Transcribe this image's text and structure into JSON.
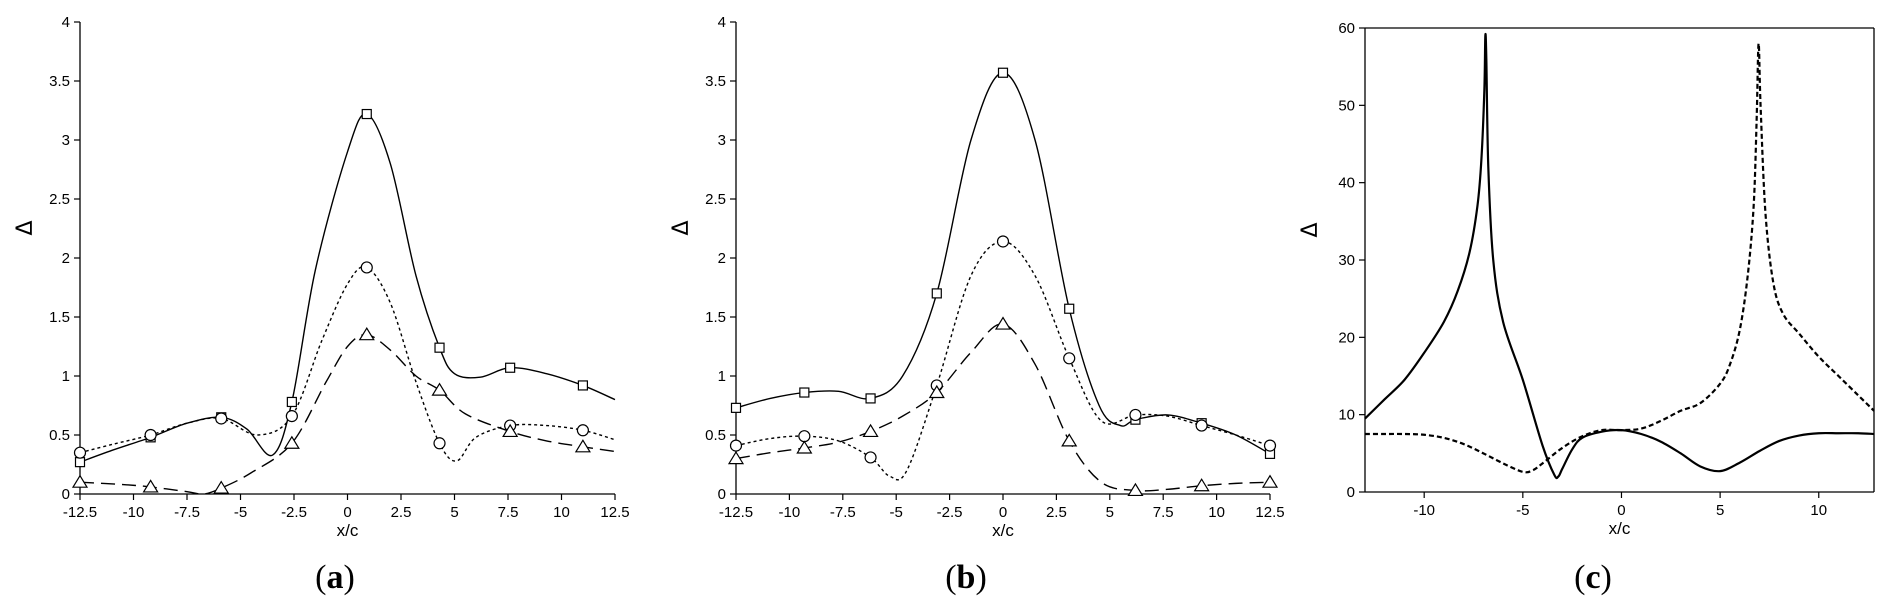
{
  "chart_data": [
    {
      "type": "line",
      "panel": "a",
      "xlabel": "x/c",
      "ylabel": "Δ",
      "xlim": [
        -12.5,
        12.5
      ],
      "ylim": [
        0,
        4
      ],
      "xticks": [
        "-12.5",
        "-10",
        "-7.5",
        "-5",
        "-2.5",
        "0",
        "2.5",
        "5",
        "7.5",
        "10",
        "12.5"
      ],
      "yticks": [
        "0",
        "0.5",
        "1",
        "1.5",
        "2",
        "2.5",
        "3",
        "3.5",
        "4"
      ],
      "series": [
        {
          "marker": "square",
          "dash": "solid",
          "x": [
            -12.5,
            -9.2,
            -5.9,
            -2.6,
            0.9,
            4.3,
            7.6,
            11.0
          ],
          "y": [
            0.27,
            0.48,
            0.65,
            0.78,
            3.22,
            1.24,
            1.07,
            0.92
          ],
          "curve_x": [
            -12.5,
            -11.0,
            -9.2,
            -7.5,
            -5.9,
            -4.7,
            -3.5,
            -2.6,
            -1.5,
            0,
            0.9,
            2,
            3.2,
            4.3,
            5,
            6.2,
            7.6,
            9.3,
            11.0,
            12.5
          ],
          "curve_y": [
            0.27,
            0.37,
            0.48,
            0.6,
            0.65,
            0.55,
            0.33,
            0.78,
            1.9,
            2.9,
            3.22,
            2.8,
            1.85,
            1.24,
            1.02,
            0.99,
            1.07,
            1.02,
            0.92,
            0.8
          ]
        },
        {
          "marker": "circle",
          "dash": "dotted",
          "x": [
            -12.5,
            -9.2,
            -5.9,
            -2.6,
            0.9,
            4.3,
            7.6,
            11.0
          ],
          "y": [
            0.35,
            0.5,
            0.64,
            0.66,
            1.92,
            0.43,
            0.58,
            0.54
          ],
          "curve_x": [
            -12.5,
            -11.0,
            -9.2,
            -7.5,
            -5.9,
            -4.2,
            -2.6,
            -1.2,
            0,
            0.9,
            2,
            3.2,
            4.3,
            5.1,
            6,
            7.6,
            9.3,
            11.0,
            12.5
          ],
          "curve_y": [
            0.35,
            0.42,
            0.5,
            0.6,
            0.64,
            0.5,
            0.66,
            1.3,
            1.78,
            1.92,
            1.62,
            0.95,
            0.43,
            0.28,
            0.48,
            0.58,
            0.58,
            0.54,
            0.46
          ]
        },
        {
          "marker": "triangle",
          "dash": "dashed",
          "x": [
            -12.5,
            -9.2,
            -5.9,
            -2.6,
            0.9,
            4.3,
            7.6,
            11.0
          ],
          "y": [
            0.1,
            0.06,
            0.05,
            0.43,
            1.35,
            0.88,
            0.53,
            0.4
          ],
          "curve_x": [
            -12.5,
            -10.5,
            -9.2,
            -7.5,
            -6.7,
            -5.9,
            -4.5,
            -2.6,
            -1.0,
            0,
            0.9,
            2,
            3.2,
            4.3,
            5.5,
            7.6,
            9.3,
            11.0,
            12.5
          ],
          "curve_y": [
            0.1,
            0.08,
            0.06,
            0.02,
            0,
            0.05,
            0.18,
            0.43,
            0.95,
            1.25,
            1.35,
            1.22,
            1.0,
            0.88,
            0.68,
            0.53,
            0.45,
            0.4,
            0.36
          ]
        }
      ]
    },
    {
      "type": "line",
      "panel": "b",
      "xlabel": "x/c",
      "ylabel": "Δ",
      "xlim": [
        -12.5,
        12.5
      ],
      "ylim": [
        0,
        4
      ],
      "xticks": [
        "-12.5",
        "-10",
        "-7.5",
        "-5",
        "-2.5",
        "0",
        "2.5",
        "5",
        "7.5",
        "10",
        "12.5"
      ],
      "yticks": [
        "0",
        "0.5",
        "1",
        "1.5",
        "2",
        "2.5",
        "3",
        "3.5",
        "4"
      ],
      "series": [
        {
          "marker": "square",
          "dash": "solid",
          "x": [
            -12.5,
            -9.3,
            -6.2,
            -3.1,
            0,
            3.1,
            6.2,
            9.3,
            12.5
          ],
          "y": [
            0.73,
            0.86,
            0.81,
            1.7,
            3.57,
            1.57,
            0.63,
            0.6,
            0.34
          ],
          "curve_x": [
            -12.5,
            -10.9,
            -9.3,
            -7.7,
            -6.2,
            -4.7,
            -3.1,
            -1.5,
            0,
            1.5,
            3.1,
            4.5,
            5.5,
            6.2,
            7.7,
            9.3,
            10.9,
            12.5
          ],
          "curve_y": [
            0.73,
            0.81,
            0.86,
            0.87,
            0.81,
            1.0,
            1.7,
            3.0,
            3.57,
            3.0,
            1.57,
            0.75,
            0.58,
            0.63,
            0.67,
            0.6,
            0.5,
            0.34
          ]
        },
        {
          "marker": "circle",
          "dash": "dotted",
          "x": [
            -12.5,
            -9.3,
            -6.2,
            -3.1,
            0,
            3.1,
            6.2,
            9.3,
            12.5
          ],
          "y": [
            0.41,
            0.49,
            0.31,
            0.92,
            2.14,
            1.15,
            0.67,
            0.58,
            0.41
          ],
          "curve_x": [
            -12.5,
            -10.9,
            -9.3,
            -7.7,
            -6.2,
            -5.3,
            -4.5,
            -3.1,
            -1.5,
            0,
            1.5,
            3.1,
            4.6,
            6.2,
            7.7,
            9.3,
            10.9,
            12.5
          ],
          "curve_y": [
            0.41,
            0.47,
            0.49,
            0.45,
            0.31,
            0.15,
            0.2,
            0.92,
            1.85,
            2.14,
            1.85,
            1.15,
            0.62,
            0.67,
            0.66,
            0.58,
            0.5,
            0.41
          ]
        },
        {
          "marker": "triangle",
          "dash": "dashed",
          "x": [
            -12.5,
            -9.3,
            -6.2,
            -3.1,
            0,
            3.1,
            6.2,
            9.3,
            12.5
          ],
          "y": [
            0.3,
            0.39,
            0.53,
            0.86,
            1.44,
            0.45,
            0.03,
            0.07,
            0.1
          ],
          "curve_x": [
            -12.5,
            -10.9,
            -9.3,
            -7.7,
            -6.2,
            -4.7,
            -3.1,
            -1.5,
            0,
            1.5,
            3.1,
            4.6,
            6.2,
            7.7,
            9.3,
            10.9,
            12.5
          ],
          "curve_y": [
            0.3,
            0.35,
            0.39,
            0.44,
            0.53,
            0.66,
            0.86,
            1.2,
            1.44,
            1.1,
            0.45,
            0.1,
            0.03,
            0.04,
            0.07,
            0.09,
            0.1
          ]
        }
      ]
    },
    {
      "type": "line",
      "panel": "c",
      "xlabel": "x/c",
      "ylabel": "Δ",
      "xlim": [
        -13,
        12.8
      ],
      "ylim": [
        0,
        60
      ],
      "xticks": [
        "-10",
        "-5",
        "0",
        "5",
        "10"
      ],
      "yticks": [
        "0",
        "10",
        "20",
        "30",
        "40",
        "50",
        "60"
      ],
      "series": [
        {
          "dash": "solid",
          "curve_x": [
            -13,
            -12,
            -11,
            -10,
            -9,
            -8.3,
            -7.7,
            -7.3,
            -7.1,
            -6.95,
            -6.9,
            -6.85,
            -6.75,
            -6.5,
            -6,
            -5,
            -4,
            -3.4,
            -3.2,
            -3,
            -2.5,
            -2,
            -1,
            0,
            1,
            2,
            3,
            4,
            5,
            6,
            7,
            8,
            9,
            10,
            11,
            12,
            12.8
          ],
          "curve_y": [
            9.5,
            12,
            14.5,
            18,
            22,
            26,
            31,
            37,
            43,
            52,
            59,
            56,
            42,
            30,
            22,
            14.5,
            6,
            2.2,
            2.0,
            3,
            5.5,
            7,
            7.8,
            8,
            7.5,
            6.5,
            5,
            3.3,
            2.7,
            3.8,
            5.3,
            6.6,
            7.3,
            7.6,
            7.6,
            7.6,
            7.5
          ]
        },
        {
          "dash": "dashed",
          "curve_x": [
            -13,
            -12,
            -11,
            -10,
            -9,
            -8,
            -7,
            -6,
            -5,
            -4.5,
            -4,
            -3,
            -2,
            -1,
            0,
            1,
            2,
            3,
            4,
            5,
            5.5,
            6,
            6.4,
            6.7,
            6.85,
            6.95,
            7.05,
            7.3,
            7.7,
            8.2,
            9,
            10,
            11,
            12,
            12.8
          ],
          "curve_y": [
            7.5,
            7.5,
            7.5,
            7.4,
            7,
            6.2,
            5,
            3.7,
            2.6,
            2.8,
            3.7,
            5.7,
            7.2,
            8,
            8,
            8.2,
            9.2,
            10.5,
            11.5,
            14,
            16.5,
            21,
            28,
            37,
            48,
            58,
            50,
            36,
            27,
            23,
            20.5,
            17.5,
            15,
            12.5,
            10.5
          ]
        }
      ]
    }
  ],
  "panel_labels": {
    "a": {
      "open": "(",
      "letter": "a",
      "close": ")"
    },
    "b": {
      "open": "(",
      "letter": "b",
      "close": ")"
    },
    "c": {
      "open": "(",
      "letter": "c",
      "close": ")"
    }
  }
}
